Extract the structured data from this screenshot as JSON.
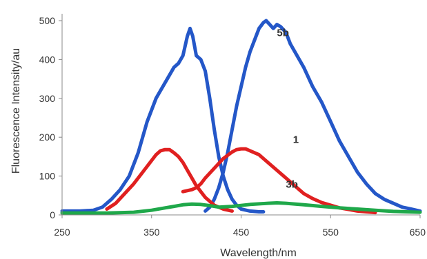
{
  "chart_data": {
    "type": "line",
    "title": "",
    "xlabel": "Wavelength/nm",
    "ylabel": "Fluorescence Intensity/au",
    "xlim": [
      250,
      650
    ],
    "ylim": [
      0,
      500
    ],
    "xticks": [
      250,
      350,
      450,
      550,
      650
    ],
    "xtick_labels": [
      "250",
      "350",
      "450",
      "550",
      "650"
    ],
    "yticks": [
      0,
      100,
      200,
      300,
      400,
      500
    ],
    "ytick_labels": [
      "0",
      "100",
      "200",
      "300",
      "400",
      "500"
    ],
    "grid": false,
    "legend": "none",
    "series": [
      {
        "name": "5b",
        "color": "#2457c8",
        "x": [
          250,
          270,
          285,
          295,
          305,
          315,
          325,
          335,
          345,
          355,
          365,
          375,
          380,
          385,
          390,
          393,
          396,
          400,
          405,
          410,
          415,
          420,
          425,
          430,
          435,
          440,
          445,
          450,
          460,
          470,
          475
        ],
        "y": [
          10,
          10,
          12,
          20,
          40,
          65,
          100,
          160,
          240,
          300,
          340,
          380,
          390,
          410,
          460,
          480,
          460,
          410,
          400,
          370,
          300,
          220,
          150,
          100,
          65,
          40,
          25,
          15,
          10,
          8,
          8
        ]
      },
      {
        "name": "5b",
        "color": "#2457c8",
        "x": [
          410,
          415,
          420,
          425,
          430,
          435,
          440,
          445,
          450,
          455,
          460,
          465,
          470,
          475,
          478,
          482,
          486,
          490,
          494,
          500,
          505,
          510,
          520,
          530,
          540,
          550,
          560,
          570,
          580,
          590,
          600,
          610,
          620,
          630,
          640,
          650
        ],
        "y": [
          10,
          20,
          40,
          70,
          110,
          160,
          220,
          280,
          330,
          380,
          420,
          450,
          480,
          495,
          500,
          490,
          480,
          490,
          485,
          470,
          440,
          420,
          380,
          330,
          290,
          240,
          190,
          150,
          110,
          80,
          55,
          40,
          30,
          20,
          15,
          10
        ]
      },
      {
        "name": "1",
        "color": "#e02020",
        "x": [
          300,
          310,
          320,
          330,
          340,
          350,
          355,
          360,
          365,
          370,
          375,
          380,
          385,
          390,
          395,
          400,
          405,
          410,
          415,
          420,
          430,
          440
        ],
        "y": [
          15,
          30,
          55,
          80,
          110,
          140,
          155,
          165,
          168,
          168,
          160,
          150,
          135,
          115,
          95,
          75,
          60,
          45,
          35,
          25,
          15,
          10
        ]
      },
      {
        "name": "1",
        "color": "#e02020",
        "x": [
          385,
          395,
          400,
          405,
          410,
          420,
          430,
          440,
          445,
          450,
          455,
          460,
          470,
          480,
          490,
          500,
          510,
          520,
          530,
          540,
          550,
          560,
          570,
          580,
          590,
          600
        ],
        "y": [
          60,
          65,
          70,
          80,
          95,
          120,
          145,
          162,
          168,
          170,
          170,
          165,
          155,
          135,
          115,
          95,
          75,
          55,
          42,
          32,
          25,
          18,
          14,
          10,
          8,
          6
        ]
      },
      {
        "name": "3b",
        "color": "#1fa84a",
        "x": [
          250,
          300,
          330,
          350,
          365,
          375,
          385,
          395,
          405,
          415,
          425,
          440,
          460,
          480,
          490,
          500,
          520,
          540,
          560,
          580,
          600,
          620,
          650
        ],
        "y": [
          5,
          5,
          7,
          12,
          18,
          22,
          26,
          28,
          27,
          24,
          20,
          22,
          27,
          30,
          31,
          30,
          26,
          22,
          18,
          15,
          12,
          9,
          7
        ]
      }
    ],
    "annotations": [
      {
        "text": "5b",
        "x": 490,
        "y": 460
      },
      {
        "text": "1",
        "x": 508,
        "y": 185
      },
      {
        "text": "3b",
        "x": 500,
        "y": 70
      }
    ]
  }
}
